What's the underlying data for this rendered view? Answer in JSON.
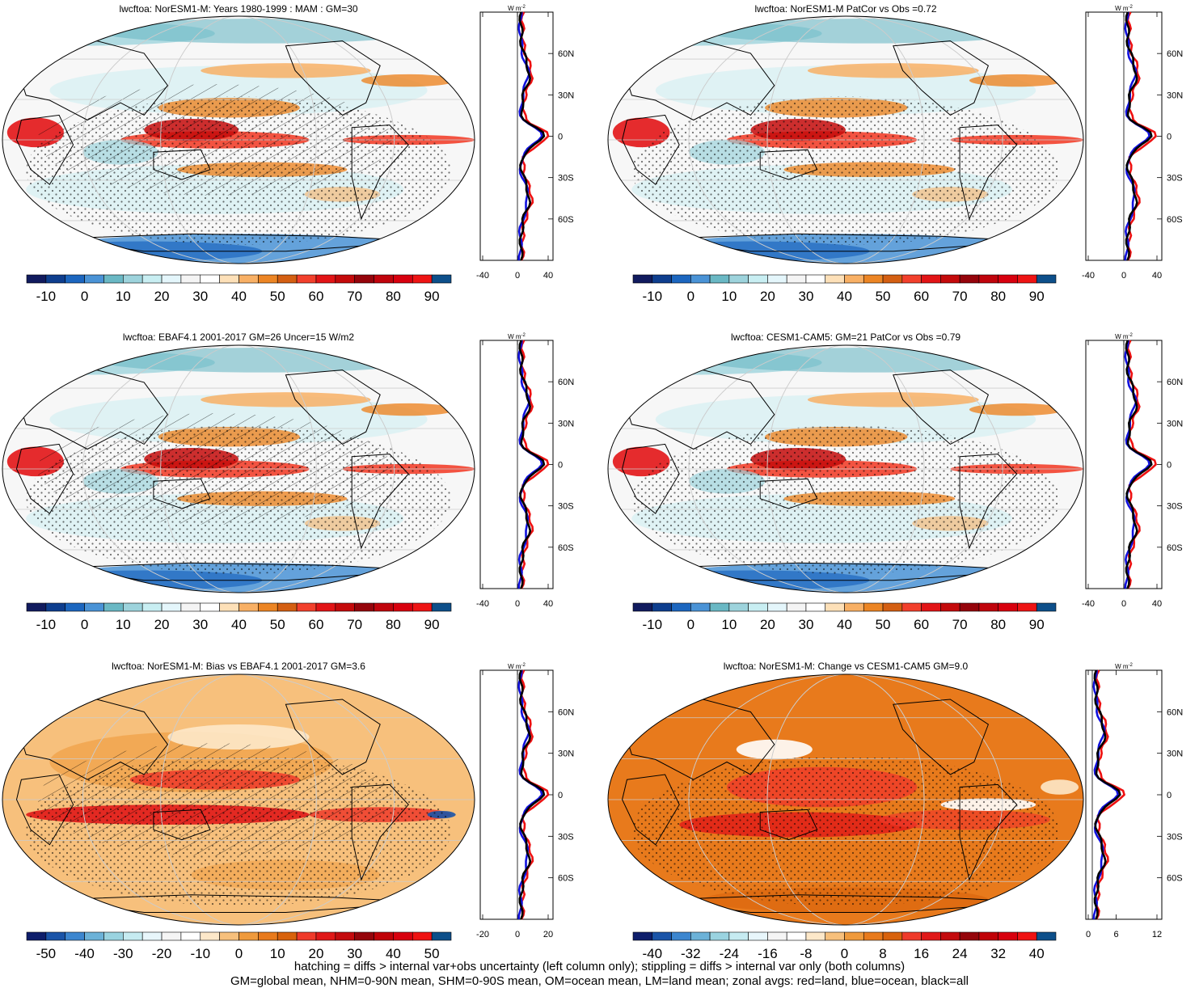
{
  "colors": {
    "full_palette": [
      "#111b5e",
      "#0e3e8e",
      "#1c66bf",
      "#4a93d6",
      "#6ab8c4",
      "#9dd3dc",
      "#c8eef2",
      "#e4f6fb",
      "#f4f4f4",
      "#ffffff",
      "#fde0b8",
      "#f8b065",
      "#ec8524",
      "#d45f12",
      "#f2402c",
      "#e21416",
      "#c40a0b",
      "#95040b",
      "#c0040c",
      "#d8000e",
      "#ee1414",
      "#0d4f8a"
    ],
    "bias_palette": [
      "#0e1e6b",
      "#1a54a8",
      "#3c86cf",
      "#6cb2d8",
      "#9ad3e0",
      "#c6ebf1",
      "#e8f6fb",
      "#f5f5f5",
      "#ffffff",
      "#fde8c9",
      "#f7c07c",
      "#ef9a3c",
      "#e87a1c",
      "#d8620c",
      "#ef3a2a",
      "#e01818",
      "#c40b0e",
      "#95050b",
      "#c00208",
      "#d8000e",
      "#ef1212",
      "#0d4f8a"
    ],
    "zonal_land": "#ee1111",
    "zonal_ocean": "#1111dd",
    "zonal_all": "#000000"
  },
  "panels": [
    {
      "title": "lwcftoa: NorESM1-M: Years 1980-1999 : MAM : GM=30",
      "type": "full",
      "hatch": true,
      "colorbar_labels": [
        "-10",
        "0",
        "10",
        "20",
        "30",
        "40",
        "50",
        "60",
        "70",
        "80",
        "90"
      ],
      "zonal_unit": "W m",
      "zonal_xticks": [
        "-40",
        "0",
        "40"
      ],
      "zonal_lat_labels": [
        "60N",
        "30N",
        "0",
        "30S",
        "60S"
      ]
    },
    {
      "title": "lwcftoa: NorESM1-M PatCor vs Obs =0.72",
      "type": "full",
      "hatch": false,
      "colorbar_labels": [
        "-10",
        "0",
        "10",
        "20",
        "30",
        "40",
        "50",
        "60",
        "70",
        "80",
        "90"
      ],
      "zonal_unit": "W m",
      "zonal_xticks": [
        "-40",
        "0",
        "40"
      ],
      "zonal_lat_labels": [
        "60N",
        "30N",
        "0",
        "30S",
        "60S"
      ]
    },
    {
      "title": "lwcftoa: EBAF4.1 2001-2017 GM=26 Uncer=15 W/m2",
      "type": "full",
      "hatch": true,
      "colorbar_labels": [
        "-10",
        "0",
        "10",
        "20",
        "30",
        "40",
        "50",
        "60",
        "70",
        "80",
        "90"
      ],
      "zonal_unit": "W m",
      "zonal_xticks": [
        "-40",
        "0",
        "40"
      ],
      "zonal_lat_labels": [
        "60N",
        "30N",
        "0",
        "30S",
        "60S"
      ]
    },
    {
      "title": "lwcftoa: CESM1-CAM5: GM=21 PatCor vs Obs =0.79",
      "type": "full",
      "hatch": false,
      "colorbar_labels": [
        "-10",
        "0",
        "10",
        "20",
        "30",
        "40",
        "50",
        "60",
        "70",
        "80",
        "90"
      ],
      "zonal_unit": "W m",
      "zonal_xticks": [
        "-40",
        "0",
        "40"
      ],
      "zonal_lat_labels": [
        "60N",
        "30N",
        "0",
        "30S",
        "60S"
      ]
    },
    {
      "title": "lwcftoa: NorESM1-M: Bias vs EBAF4.1 2001-2017 GM=3.6",
      "type": "bias",
      "hatch": true,
      "colorbar_labels": [
        "-50",
        "-40",
        "-30",
        "-20",
        "-10",
        "0",
        "10",
        "20",
        "30",
        "40",
        "50"
      ],
      "zonal_unit": "W m",
      "zonal_xticks": [
        "-20",
        "0",
        "20"
      ],
      "zonal_lat_labels": [
        "60N",
        "30N",
        "0",
        "30S",
        "60S"
      ]
    },
    {
      "title": "lwcftoa: NorESM1-M: Change vs CESM1-CAM5 GM=9.0",
      "type": "change",
      "hatch": false,
      "colorbar_labels": [
        "-40",
        "-32",
        "-24",
        "-16",
        "-8",
        "0",
        "8",
        "16",
        "24",
        "32",
        "40"
      ],
      "zonal_unit": "W m",
      "zonal_xticks": [
        "0",
        "6",
        "12"
      ],
      "zonal_lat_labels": [
        "60N",
        "30N",
        "0",
        "30S",
        "60S"
      ]
    }
  ],
  "footnote": {
    "line1": "hatching = diffs > internal var+obs uncertainty (left column only); stippling = diffs > internal var only (both columns)",
    "line2": "GM=global mean, NHM=0-90N mean, SHM=0-90S mean, OM=ocean mean, LM=land mean; zonal avgs: red=land, blue=ocean, black=all"
  }
}
